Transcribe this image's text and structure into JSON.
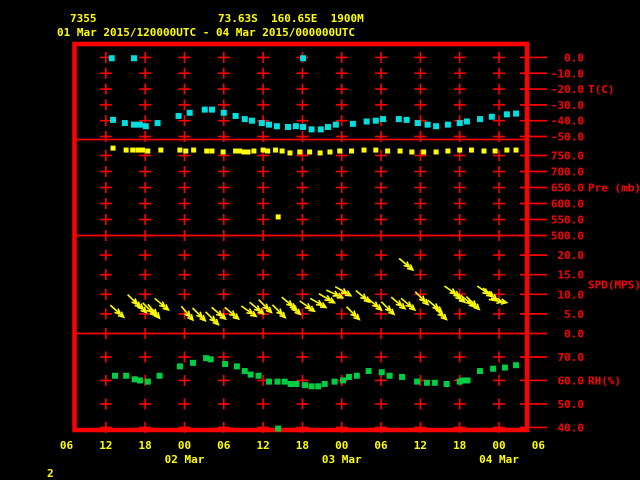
{
  "header": {
    "station_id": "7355",
    "location": "73.63S  160.65E  1900M",
    "time_range": "01 Mar 2015/120000UTC - 04 Mar 2015/000000UTC"
  },
  "footer": {
    "page_number": "2"
  },
  "colors": {
    "background": "#000000",
    "grid": "#ff0000",
    "text_yellow": "#ffff00",
    "temp": "#00dfe0",
    "pressure": "#ffff00",
    "wind": "#ffff00",
    "rh": "#00cc44"
  },
  "chart_data": {
    "type": "scatter",
    "title": "Station meteogram 7355, 01 Mar 2015 12UTC - 04 Mar 2015 00UTC",
    "x": {
      "unit": "hours since 01 Mar 2015 00UTC",
      "range": [
        6,
        78
      ],
      "hour_labels": [
        "06",
        "12",
        "18",
        "00",
        "06",
        "12",
        "18",
        "00",
        "06",
        "12",
        "18",
        "00",
        "06"
      ],
      "gridline_label_indices": [
        1,
        2,
        3,
        4,
        5,
        6,
        7,
        8,
        9,
        10,
        11
      ],
      "date_labels": [
        {
          "label": "02 Mar",
          "hour_index": 3
        },
        {
          "label": "03 Mar",
          "hour_index": 7
        },
        {
          "label": "04 Mar",
          "hour_index": 11
        }
      ]
    },
    "panels": [
      {
        "id": "temperature",
        "unit_label": "T(C)",
        "unit_label_value": -20,
        "ylim": [
          8.5,
          -51.9
        ],
        "ticks": [
          {
            "v": 0,
            "l": "0.0"
          },
          {
            "v": -10,
            "l": "-10.0"
          },
          {
            "v": -20,
            "l": "-20.0"
          },
          {
            "v": -30,
            "l": "-30.0"
          },
          {
            "v": -40,
            "l": "-40.0"
          },
          {
            "v": -50,
            "l": "-50.0"
          }
        ],
        "series": [
          {
            "name": "temperature_c",
            "marker": "square",
            "size": 6,
            "color_key": "temp",
            "points": [
              [
                13.1,
                -39.5
              ],
              [
                14.9,
                -41.5
              ],
              [
                16.3,
                -42.5
              ],
              [
                17.2,
                -42.5
              ],
              [
                18.1,
                -43.5
              ],
              [
                19.9,
                -41.5
              ],
              [
                23.1,
                -37
              ],
              [
                24.8,
                -35
              ],
              [
                27.1,
                -33
              ],
              [
                28.2,
                -33
              ],
              [
                30,
                -35
              ],
              [
                31.8,
                -37
              ],
              [
                33.2,
                -39
              ],
              [
                34.3,
                -40
              ],
              [
                35.8,
                -41.5
              ],
              [
                36.9,
                -42.5
              ],
              [
                38.1,
                -43.5
              ],
              [
                39.8,
                -44
              ],
              [
                41,
                -43.5
              ],
              [
                42.1,
                -44
              ],
              [
                43.4,
                -45.5
              ],
              [
                44.8,
                -45.5
              ],
              [
                45.9,
                -44
              ],
              [
                47.1,
                -42.5
              ],
              [
                49.7,
                -42
              ],
              [
                51.8,
                -40.5
              ],
              [
                53.2,
                -40
              ],
              [
                54.3,
                -39
              ],
              [
                56.7,
                -39
              ],
              [
                57.9,
                -39.5
              ],
              [
                59.6,
                -41.5
              ],
              [
                61.1,
                -42.5
              ],
              [
                62.4,
                -43.5
              ],
              [
                64.2,
                -42.5
              ],
              [
                66,
                -41.5
              ],
              [
                67.1,
                -40.5
              ],
              [
                69.1,
                -39
              ],
              [
                70.9,
                -37.5
              ],
              [
                73.2,
                -36
              ],
              [
                74.6,
                -35.5
              ]
            ]
          },
          {
            "name": "temperature_outliers_c",
            "marker": "square",
            "size": 6,
            "color_key": "temp",
            "points": [
              [
                12.9,
                -0.5
              ],
              [
                16.3,
                -0.5
              ],
              [
                42.1,
                -0.5
              ]
            ]
          }
        ]
      },
      {
        "id": "pressure",
        "unit_label": "Pre (mb)",
        "unit_label_value": 650,
        "ylim": [
          800,
          500
        ],
        "ticks": [
          {
            "v": 750,
            "l": "750.0"
          },
          {
            "v": 700,
            "l": "700.0"
          },
          {
            "v": 650,
            "l": "650.0"
          },
          {
            "v": 600,
            "l": "600.0"
          },
          {
            "v": 550,
            "l": "550.0"
          },
          {
            "v": 500,
            "l": "500.0"
          }
        ],
        "series": [
          {
            "name": "pressure_mb",
            "marker": "square",
            "size": 5,
            "color_key": "pressure",
            "points": [
              [
                13.1,
                773
              ],
              [
                15.1,
                767
              ],
              [
                16.1,
                767
              ],
              [
                16.9,
                767
              ],
              [
                17.6,
                767
              ],
              [
                18.4,
                764
              ],
              [
                20.4,
                767
              ],
              [
                23.3,
                767
              ],
              [
                24.2,
                764
              ],
              [
                25.4,
                767
              ],
              [
                27.4,
                764
              ],
              [
                28.2,
                764
              ],
              [
                29.9,
                761
              ],
              [
                31.8,
                764
              ],
              [
                32.4,
                764
              ],
              [
                33.1,
                761
              ],
              [
                33.7,
                761
              ],
              [
                34.6,
                764
              ],
              [
                36,
                767
              ],
              [
                36.7,
                764
              ],
              [
                37.9,
                767
              ],
              [
                38.9,
                764
              ],
              [
                40.1,
                758
              ],
              [
                41.6,
                761
              ],
              [
                43.1,
                761
              ],
              [
                44.7,
                758
              ],
              [
                46.2,
                761
              ],
              [
                47.7,
                764
              ],
              [
                49.5,
                764
              ],
              [
                51.4,
                767
              ],
              [
                53.2,
                767
              ],
              [
                55,
                764
              ],
              [
                56.9,
                764
              ],
              [
                58.7,
                761
              ],
              [
                60.5,
                761
              ],
              [
                62.4,
                761
              ],
              [
                64.2,
                764
              ],
              [
                66,
                767
              ],
              [
                67.8,
                767
              ],
              [
                69.7,
                764
              ],
              [
                71.4,
                764
              ],
              [
                73.2,
                767
              ],
              [
                74.6,
                767
              ]
            ]
          },
          {
            "name": "pressure_outlier_mb",
            "marker": "square",
            "size": 5,
            "color_key": "pressure",
            "points": [
              [
                38.3,
                558
              ]
            ]
          }
        ]
      },
      {
        "id": "wind",
        "unit_label": "SPD(MPS)",
        "unit_label_value": 12.5,
        "ylim": [
          25,
          0
        ],
        "ticks": [
          {
            "v": 20,
            "l": "20.0"
          },
          {
            "v": 15,
            "l": "15.0"
          },
          {
            "v": 10,
            "l": "10.0"
          },
          {
            "v": 5,
            "l": "5.0"
          },
          {
            "v": 0,
            "l": "0.0"
          }
        ],
        "series": [
          {
            "name": "wind_speed_mps_dir_deg",
            "marker": "arrow",
            "color_key": "wind",
            "points": [
              [
                13.7,
                5.7,
                42
              ],
              [
                16.3,
                8.3,
                45
              ],
              [
                17.2,
                7,
                45
              ],
              [
                18.6,
                6.2,
                45
              ],
              [
                19.3,
                5.7,
                50
              ],
              [
                20.5,
                7.5,
                40
              ],
              [
                24.4,
                5.2,
                50
              ],
              [
                26.2,
                4.9,
                45
              ],
              [
                28.2,
                3.9,
                45
              ],
              [
                29.2,
                5.2,
                40
              ],
              [
                31.2,
                5.2,
                40
              ],
              [
                33.8,
                5.7,
                35
              ],
              [
                35,
                6.5,
                40
              ],
              [
                36.3,
                7,
                45
              ],
              [
                38.4,
                5.7,
                45
              ],
              [
                39.9,
                7.8,
                40
              ],
              [
                40.7,
                6.5,
                45
              ],
              [
                42.7,
                7,
                35
              ],
              [
                44.4,
                7.8,
                30
              ],
              [
                45.7,
                9,
                30
              ],
              [
                46.9,
                10.1,
                25
              ],
              [
                48.2,
                10.8,
                30
              ],
              [
                49.7,
                5.2,
                45
              ],
              [
                51.2,
                9.5,
                40
              ],
              [
                53,
                7.5,
                40
              ],
              [
                55,
                6.5,
                45
              ],
              [
                56.6,
                7.8,
                40
              ],
              [
                57.8,
                17.7,
                40
              ],
              [
                58.1,
                7.5,
                40
              ],
              [
                60.2,
                9,
                45
              ],
              [
                62.2,
                7,
                40
              ],
              [
                63,
                5.2,
                45
              ],
              [
                64.8,
                10.8,
                35
              ],
              [
                65.7,
                9.5,
                40
              ],
              [
                67.2,
                8.3,
                40
              ],
              [
                68,
                7.8,
                45
              ],
              [
                69.8,
                10.8,
                35
              ],
              [
                70.6,
                10.1,
                40
              ],
              [
                71.8,
                8.3,
                10
              ]
            ]
          }
        ]
      },
      {
        "id": "relative_humidity",
        "unit_label": "RH(%)",
        "unit_label_value": 60,
        "ylim": [
          80,
          38.9
        ],
        "ticks": [
          {
            "v": 70,
            "l": "70.0"
          },
          {
            "v": 60,
            "l": "60.0"
          },
          {
            "v": 50,
            "l": "50.0"
          },
          {
            "v": 40,
            "l": "40.0"
          }
        ],
        "series": [
          {
            "name": "rh_percent",
            "marker": "square",
            "size": 6,
            "color_key": "rh",
            "points": [
              [
                13.4,
                62
              ],
              [
                15.1,
                62
              ],
              [
                16.4,
                60.5
              ],
              [
                17.2,
                60
              ],
              [
                18.4,
                59.5
              ],
              [
                20.2,
                62
              ],
              [
                23.3,
                66
              ],
              [
                25.3,
                67.5
              ],
              [
                27.3,
                69.5
              ],
              [
                28,
                69
              ],
              [
                30.2,
                67
              ],
              [
                32,
                66
              ],
              [
                33.2,
                64
              ],
              [
                34.1,
                62.5
              ],
              [
                35.3,
                62
              ],
              [
                36.9,
                59.5
              ],
              [
                38.2,
                59.5
              ],
              [
                39.3,
                59.5
              ],
              [
                40.2,
                58.5
              ],
              [
                41.1,
                58.5
              ],
              [
                42.4,
                58
              ],
              [
                43.4,
                57.5
              ],
              [
                44.4,
                57.5
              ],
              [
                45.4,
                58.5
              ],
              [
                46.9,
                59.5
              ],
              [
                48.2,
                60
              ],
              [
                49.1,
                61.5
              ],
              [
                50.3,
                62
              ],
              [
                52.1,
                64
              ],
              [
                54.1,
                63.5
              ],
              [
                55.3,
                62
              ],
              [
                57.2,
                61.5
              ],
              [
                59.5,
                59.5
              ],
              [
                61,
                59
              ],
              [
                62.2,
                59
              ],
              [
                64,
                58.5
              ],
              [
                66,
                59.5
              ],
              [
                66.5,
                60
              ],
              [
                67.2,
                60
              ],
              [
                69.1,
                64
              ],
              [
                71.1,
                65
              ],
              [
                72.9,
                65.5
              ],
              [
                74.6,
                66.5
              ]
            ]
          },
          {
            "name": "rh_outlier_percent",
            "marker": "square",
            "size": 6,
            "color_key": "rh",
            "points": [
              [
                38.3,
                39.5
              ]
            ]
          }
        ]
      }
    ]
  }
}
